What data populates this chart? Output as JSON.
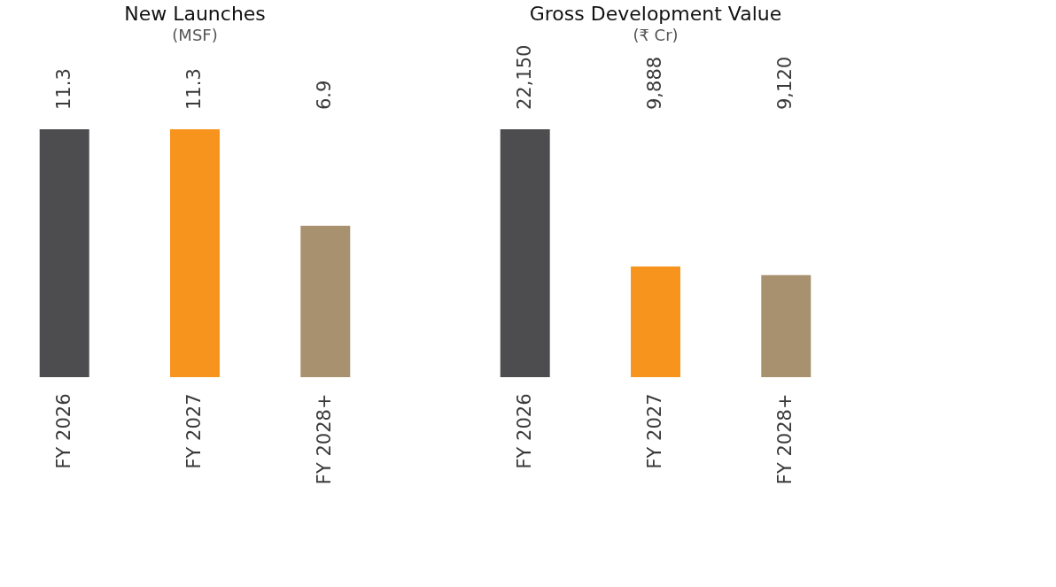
{
  "chart_data": [
    {
      "type": "bar",
      "title": "New Launches",
      "subtitle": "(MSF)",
      "categories": [
        "FY 2026",
        "FY 2027",
        "FY 2028+"
      ],
      "values": [
        11.3,
        11.3,
        6.9
      ],
      "colors": [
        "#4d4d4f",
        "#f7941d",
        "#a8916e"
      ],
      "data_labels": true
    },
    {
      "type": "bar",
      "title": "Gross Development Value",
      "subtitle": "(₹ Cr)",
      "categories": [
        "FY 2026",
        "FY 2027",
        "FY 2028+"
      ],
      "values": [
        22150,
        9888,
        9120
      ],
      "colors": [
        "#4d4d4f",
        "#f7941d",
        "#a8916e"
      ],
      "value_labels": [
        "22,150",
        "9,888",
        "9,120"
      ]
    }
  ]
}
